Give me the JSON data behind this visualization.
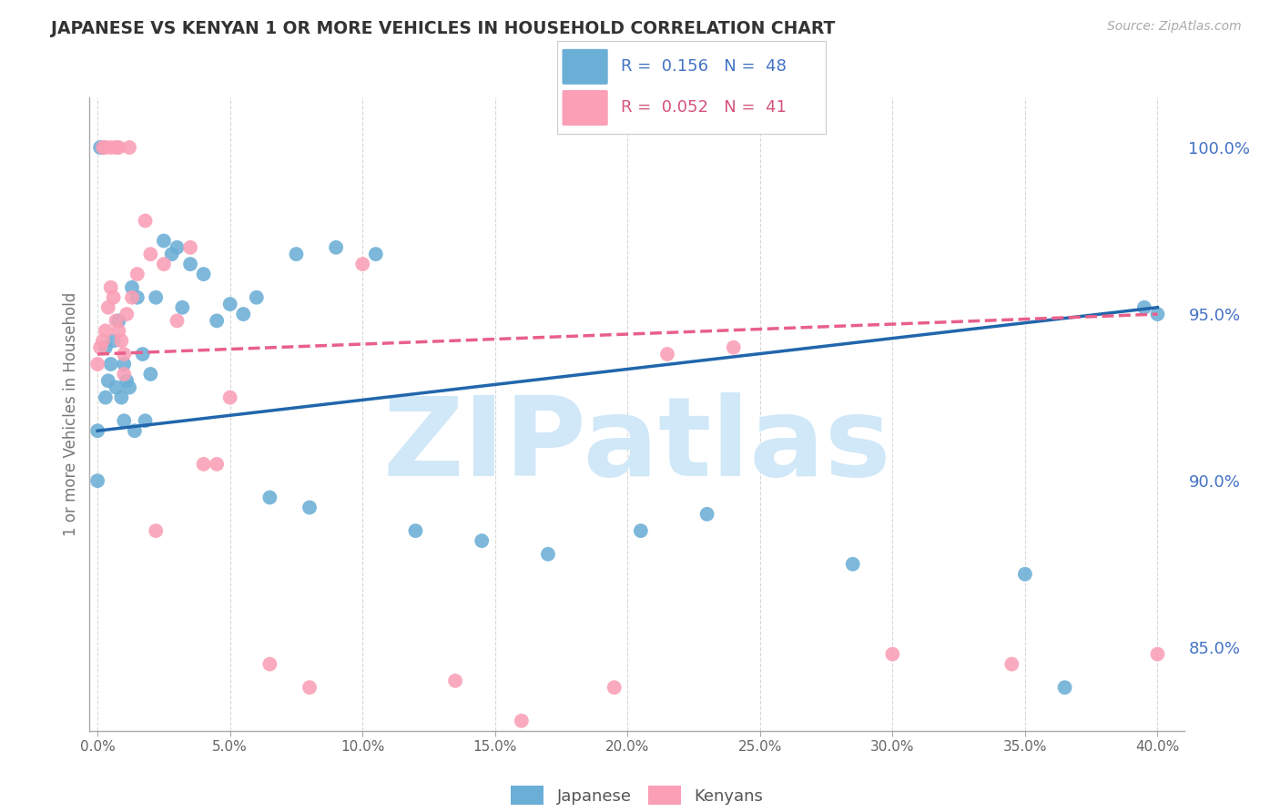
{
  "title": "JAPANESE VS KENYAN 1 OR MORE VEHICLES IN HOUSEHOLD CORRELATION CHART",
  "source": "Source: ZipAtlas.com",
  "ylabel": "1 or more Vehicles in Household",
  "xlim": [
    -0.3,
    41.0
  ],
  "ylim": [
    82.5,
    101.5
  ],
  "xtick_vals": [
    0.0,
    5.0,
    10.0,
    15.0,
    20.0,
    25.0,
    30.0,
    35.0,
    40.0
  ],
  "ytick_vals": [
    85.0,
    90.0,
    95.0,
    100.0
  ],
  "legend_r_japanese": "R =  0.156",
  "legend_n_japanese": "N =  48",
  "legend_r_kenyan": "R =  0.052",
  "legend_n_kenyan": "N =  41",
  "japanese_color": "#6baed6",
  "kenyan_color": "#fa9fb5",
  "japanese_line_color": "#2166ac",
  "kenyan_line_color": "#e8608a",
  "legend_text_color_jp": "#4472c4",
  "legend_text_color_kn": "#d4547a",
  "yaxis_right_color": "#4472c4",
  "watermark": "ZIPatlas",
  "watermark_color": "#d0e8f8",
  "legend_label_japanese": "Japanese",
  "legend_label_kenyan": "Kenyans",
  "japanese_x": [
    0.0,
    0.0,
    0.3,
    0.3,
    0.5,
    0.6,
    0.7,
    0.8,
    0.9,
    1.0,
    1.0,
    1.1,
    1.2,
    1.3,
    1.5,
    1.7,
    2.0,
    2.2,
    2.5,
    2.8,
    3.0,
    3.5,
    4.0,
    4.5,
    5.0,
    5.5,
    6.0,
    7.5,
    9.0,
    10.5,
    12.0,
    14.5,
    17.0,
    20.5,
    23.0,
    28.5,
    35.0,
    36.5,
    39.5,
    40.0,
    0.1,
    0.2,
    0.4,
    1.4,
    1.8,
    3.2,
    6.5,
    8.0
  ],
  "japanese_y": [
    91.5,
    90.0,
    94.0,
    92.5,
    93.5,
    94.2,
    92.8,
    94.8,
    92.5,
    93.5,
    91.8,
    93.0,
    92.8,
    95.8,
    95.5,
    93.8,
    93.2,
    95.5,
    97.2,
    96.8,
    97.0,
    96.5,
    96.2,
    94.8,
    95.3,
    95.0,
    95.5,
    96.8,
    97.0,
    96.8,
    88.5,
    88.2,
    87.8,
    88.5,
    89.0,
    87.5,
    87.2,
    83.8,
    95.2,
    95.0,
    100.0,
    100.0,
    93.0,
    91.5,
    91.8,
    95.2,
    89.5,
    89.2
  ],
  "kenyan_x": [
    0.0,
    0.1,
    0.2,
    0.3,
    0.4,
    0.5,
    0.6,
    0.7,
    0.8,
    0.9,
    1.0,
    1.0,
    1.1,
    1.3,
    1.5,
    1.8,
    2.0,
    2.5,
    3.0,
    3.5,
    4.0,
    4.5,
    5.0,
    6.5,
    8.0,
    10.0,
    13.5,
    16.0,
    19.5,
    21.5,
    24.0,
    30.0,
    34.5,
    40.0,
    0.2,
    0.3,
    0.5,
    0.7,
    0.8,
    1.2,
    2.2
  ],
  "kenyan_y": [
    93.5,
    94.0,
    94.2,
    94.5,
    95.2,
    95.8,
    95.5,
    94.8,
    94.5,
    94.2,
    93.8,
    93.2,
    95.0,
    95.5,
    96.2,
    97.8,
    96.8,
    96.5,
    94.8,
    97.0,
    90.5,
    90.5,
    92.5,
    84.5,
    83.8,
    96.5,
    84.0,
    82.8,
    83.8,
    93.8,
    94.0,
    84.8,
    84.5,
    84.8,
    100.0,
    100.0,
    100.0,
    100.0,
    100.0,
    100.0,
    88.5
  ],
  "jp_trend_x0": 0.0,
  "jp_trend_x1": 40.0,
  "jp_trend_y0": 91.5,
  "jp_trend_y1": 95.2,
  "kn_trend_x0": 0.0,
  "kn_trend_x1": 40.0,
  "kn_trend_y0": 93.8,
  "kn_trend_y1": 95.0
}
